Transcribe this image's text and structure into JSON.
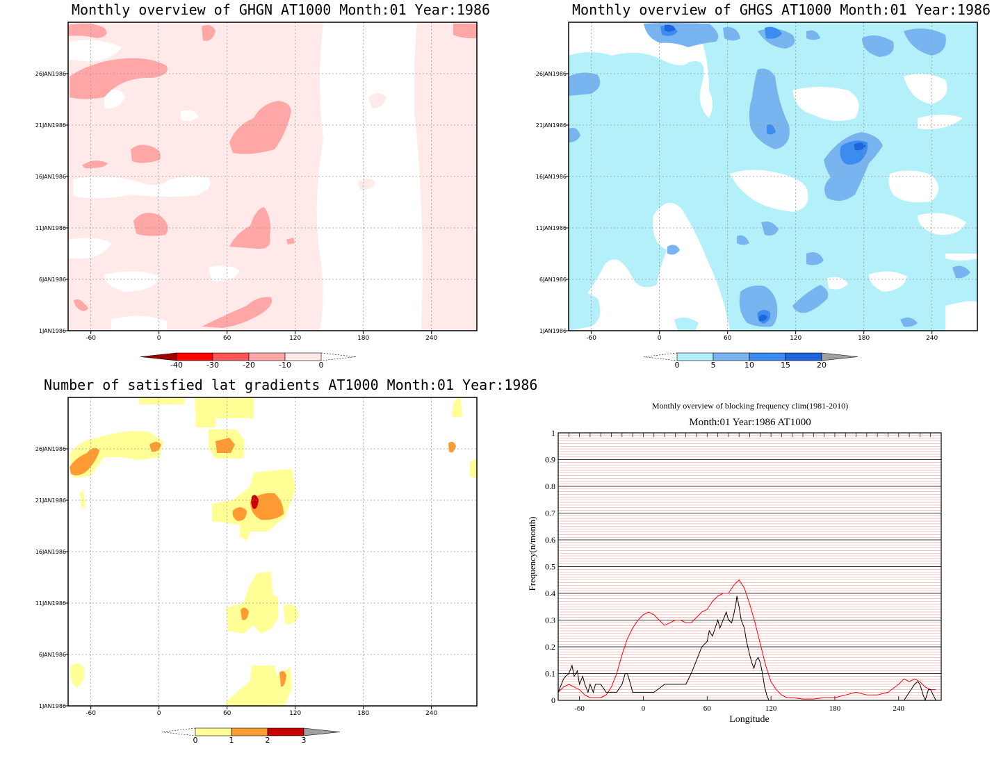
{
  "panels": {
    "ghgn": {
      "title": "Monthly overview of GHGN AT1000 Month:01 Year:1986",
      "colorbar": {
        "labels": [
          "-40",
          "-30",
          "-20",
          "-10",
          "0"
        ],
        "colors": [
          "#a10000",
          "#ff0000",
          "#ff5757",
          "#ffa6a6",
          "#ffe9e9"
        ]
      }
    },
    "ghgs": {
      "title": "Monthly overview of GHGS AT1000 Month:01 Year:1986",
      "colorbar": {
        "labels": [
          "0",
          "5",
          "10",
          "15",
          "20"
        ],
        "colors": [
          "#b4f0fa",
          "#78b4f0",
          "#3c8cf0",
          "#1e64dc",
          "#a0a0a0"
        ]
      }
    },
    "grad": {
      "title": "Number of satisfied lat gradients AT1000 Month:01 Year:1986",
      "colorbar": {
        "labels": [
          "0",
          "1",
          "2",
          "3"
        ],
        "colors": [
          "#ffff96",
          "#ff9b32",
          "#c80000",
          "#a0a0a0"
        ]
      }
    },
    "freq": {
      "title1": "Monthly overview of blocking frequency clim(1981-2010)",
      "title2": "Month:01 Year:1986  AT1000"
    }
  },
  "map_axes": {
    "x_ticks": [
      "-60",
      "0",
      "60",
      "120",
      "180",
      "240"
    ],
    "y_ticks": [
      "1JAN1986",
      "6JAN1986",
      "11JAN1986",
      "16JAN1986",
      "21JAN1986",
      "26JAN1986"
    ]
  },
  "chart_data": [
    {
      "type": "heatmap",
      "title": "Monthly overview of GHGN AT1000 Month:01 Year:1986",
      "xlim": [
        -80,
        280
      ],
      "ylim": [
        "1JAN1986",
        "31JAN1986"
      ],
      "levels": [
        -40,
        -30,
        -20,
        -10,
        0
      ]
    },
    {
      "type": "heatmap",
      "title": "Monthly overview of GHGS AT1000 Month:01 Year:1986",
      "xlim": [
        -80,
        280
      ],
      "ylim": [
        "1JAN1986",
        "31JAN1986"
      ],
      "levels": [
        0,
        5,
        10,
        15,
        20
      ]
    },
    {
      "type": "heatmap",
      "title": "Number of satisfied lat gradients AT1000 Month:01 Year:1986",
      "xlim": [
        -80,
        280
      ],
      "ylim": [
        "1JAN1986",
        "31JAN1986"
      ],
      "levels": [
        0,
        1,
        2,
        3
      ]
    },
    {
      "type": "line",
      "title": "Monthly overview of blocking frequency clim(1981-2010)",
      "subtitle": "Month:01 Year:1986  AT1000",
      "xlabel": "Longitude",
      "ylabel": "Frequency(n/month)",
      "xlim": [
        -80,
        280
      ],
      "ylim": [
        0,
        1
      ],
      "x_ticks": [
        -60,
        0,
        60,
        120,
        180,
        240
      ],
      "y_ticks": [
        0,
        0.1,
        0.2,
        0.3,
        0.4,
        0.5,
        0.6,
        0.7,
        0.8,
        0.9,
        1
      ],
      "series": [
        {
          "color": "#ff0000",
          "x": [
            -80,
            -75,
            -70,
            -65,
            -60,
            -55,
            -50,
            -45,
            -40,
            -35,
            -30,
            -25,
            -20,
            -15,
            -10,
            -5,
            0,
            5,
            10,
            15,
            20,
            25,
            30,
            35,
            40,
            45,
            50,
            55,
            60,
            65,
            70,
            75,
            80,
            85,
            90,
            95,
            100,
            105,
            110,
            115,
            120,
            125,
            130,
            135,
            140,
            150,
            160,
            170,
            180,
            190,
            200,
            210,
            220,
            230,
            240,
            245,
            250,
            255,
            260,
            265,
            270,
            275
          ],
          "y": [
            0.03,
            0.05,
            0.06,
            0.05,
            0.04,
            0.02,
            0.01,
            0.01,
            0.01,
            0.02,
            0.05,
            0.1,
            0.17,
            0.23,
            0.27,
            0.3,
            0.32,
            0.33,
            0.32,
            0.3,
            0.28,
            0.29,
            0.3,
            0.3,
            0.29,
            0.29,
            0.31,
            0.33,
            0.34,
            0.37,
            0.39,
            0.4,
            0.4,
            0.43,
            0.45,
            0.42,
            0.36,
            0.29,
            0.21,
            0.13,
            0.07,
            0.04,
            0.02,
            0.01,
            0.01,
            0.005,
            0.005,
            0.01,
            0.01,
            0.02,
            0.03,
            0.02,
            0.02,
            0.03,
            0.06,
            0.08,
            0.07,
            0.08,
            0.07,
            0.05,
            0.04,
            0.04
          ]
        },
        {
          "color": "#000000",
          "x": [
            -80,
            -75,
            -73,
            -70,
            -67,
            -65,
            -62,
            -60,
            -57,
            -55,
            -52,
            -50,
            -47,
            -45,
            -40,
            -35,
            -30,
            -25,
            -20,
            -17,
            -15,
            -12,
            -10,
            -5,
            0,
            10,
            20,
            30,
            40,
            45,
            50,
            55,
            60,
            62,
            65,
            70,
            72,
            75,
            78,
            80,
            83,
            85,
            87,
            88,
            90,
            92,
            95,
            97,
            100,
            102,
            104,
            106,
            108,
            110,
            112,
            114,
            116,
            118,
            120,
            125,
            130,
            150,
            200,
            240,
            245,
            250,
            255,
            258,
            260,
            263,
            265,
            268,
            270,
            275
          ],
          "y": [
            0.03,
            0.08,
            0.09,
            0.1,
            0.13,
            0.09,
            0.11,
            0.06,
            0.09,
            0.06,
            0.03,
            0.06,
            0.03,
            0.06,
            0.06,
            0.03,
            0.03,
            0.03,
            0.06,
            0.1,
            0.1,
            0.06,
            0.03,
            0.03,
            0.03,
            0.03,
            0.06,
            0.06,
            0.06,
            0.1,
            0.15,
            0.2,
            0.22,
            0.26,
            0.24,
            0.3,
            0.27,
            0.3,
            0.33,
            0.3,
            0.29,
            0.32,
            0.36,
            0.39,
            0.35,
            0.3,
            0.27,
            0.22,
            0.17,
            0.14,
            0.12,
            0.15,
            0.16,
            0.14,
            0.1,
            0.05,
            0.02,
            0.0,
            0.0,
            0.0,
            0.0,
            0.0,
            0.0,
            0.0,
            0.0,
            0.03,
            0.06,
            0.07,
            0.06,
            0.02,
            0.0,
            0.04,
            0.04,
            0.0
          ]
        }
      ]
    }
  ]
}
